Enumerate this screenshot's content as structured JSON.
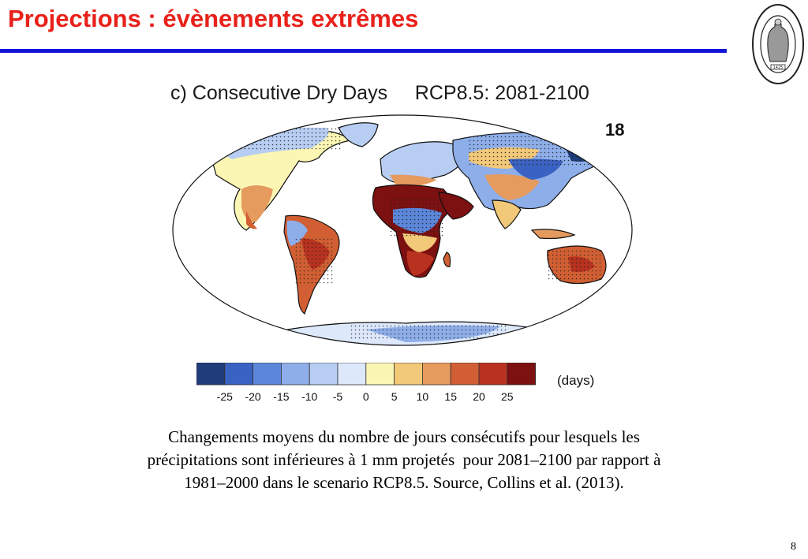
{
  "slide": {
    "title": "Projections : évènements extrêmes",
    "page_number": "8"
  },
  "figure": {
    "title": "c) Consecutive Dry Days     RCP8.5: 2081-2100",
    "model_count": "18",
    "units": "(days)"
  },
  "legend": {
    "colors": [
      "#1e3d7a",
      "#3a62c2",
      "#5b86d9",
      "#8eaee9",
      "#b7cdf2",
      "#dde8fb",
      "#fbf6b4",
      "#f2c879",
      "#e59a5e",
      "#d25f33",
      "#b8321f",
      "#7d1010"
    ],
    "tick_labels": [
      "-25",
      "-20",
      "-15",
      "-10",
      "-5",
      "0",
      "5",
      "10",
      "15",
      "20",
      "25"
    ]
  },
  "caption": {
    "line1": "Changements moyens du nombre de jours consécutifs pour lesquels les",
    "line2": "précipitations sont inférieures à 1 mm projetés  pour 2081–2100 par rapport à",
    "line3": "1981–2000 dans le scenario RCP8.5. Source, Collins et al. (2013)."
  },
  "seal": {
    "text": "UNIVERSITAS CATHOLICA LOVANIENSIS SEDES SAPIENTIAE",
    "year": "1425"
  }
}
